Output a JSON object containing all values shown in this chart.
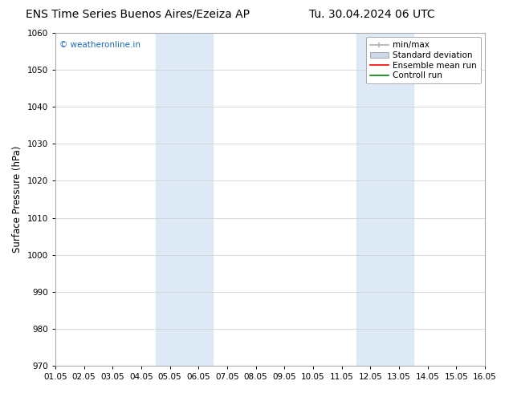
{
  "title_left": "ENS Time Series Buenos Aires/Ezeiza AP",
  "title_right": "Tu. 30.04.2024 06 UTC",
  "ylabel": "Surface Pressure (hPa)",
  "ylim": [
    970,
    1060
  ],
  "yticks": [
    970,
    980,
    990,
    1000,
    1010,
    1020,
    1030,
    1040,
    1050,
    1060
  ],
  "xlim_dates": [
    "01.05",
    "02.05",
    "03.05",
    "04.05",
    "05.05",
    "06.05",
    "07.05",
    "08.05",
    "09.05",
    "10.05",
    "11.05",
    "12.05",
    "13.05",
    "14.05",
    "15.05",
    "16.05"
  ],
  "shaded_bands": [
    {
      "xstart": 3.5,
      "xend": 5.5,
      "color": "#ddeaf5"
    },
    {
      "xstart": 10.5,
      "xend": 12.5,
      "color": "#ddeaf5"
    }
  ],
  "watermark": "© weatheronline.in",
  "watermark_color": "#1a6bbf",
  "bg_color": "#ffffff",
  "plot_bg_color": "#ffffff",
  "grid_color": "#cccccc",
  "title_fontsize": 10,
  "tick_fontsize": 7.5,
  "ylabel_fontsize": 8.5,
  "legend_fontsize": 7.5
}
